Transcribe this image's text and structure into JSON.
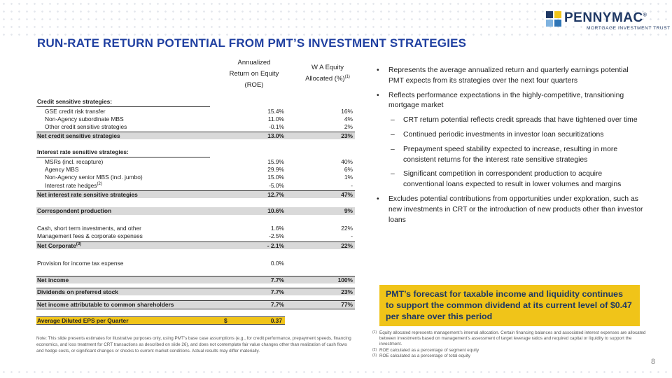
{
  "logo": {
    "name": "PENNYMAC",
    "trademark": "®",
    "tagline": "MORTGAGE INVESTMENT TRUST",
    "colors": [
      "#1f3864",
      "#2e75b6",
      "#f0c419",
      "#7fb3e0"
    ]
  },
  "title": "RUN-RATE RETURN POTENTIAL FROM PMT’S INVESTMENT STRATEGIES",
  "table": {
    "col_roe": [
      "Annualized",
      "Return on Equity",
      "(ROE)"
    ],
    "col_alloc_line1": "W A Equity",
    "col_alloc_line2": "Allocated (%)",
    "col_alloc_sup": "(1)",
    "rows": [
      {
        "label": "Credit sensitive strategies:",
        "roe": "",
        "alloc": ""
      },
      {
        "label": "GSE credit risk transfer",
        "roe": "15.4%",
        "alloc": "16%"
      },
      {
        "label": "Non-Agency subordinate MBS",
        "roe": "11.0%",
        "alloc": "4%"
      },
      {
        "label": "Other credit sensitive strategies",
        "roe": "-0.1%",
        "alloc": "2%"
      },
      {
        "label": "Net credit sensitive strategies",
        "roe": "13.0%",
        "alloc": "23%"
      },
      {
        "label": "Interest rate sensitive strategies:",
        "roe": "",
        "alloc": ""
      },
      {
        "label": "MSRs (incl. recapture)",
        "roe": "15.9%",
        "alloc": "40%"
      },
      {
        "label": "Agency MBS",
        "roe": "29.9%",
        "alloc": "6%"
      },
      {
        "label": "Non-Agency senior MBS (incl. jumbo)",
        "roe": "15.0%",
        "alloc": "1%"
      },
      {
        "label": "Interest rate hedges",
        "sup": "(2)",
        "roe": "-5.0%",
        "alloc": "-"
      },
      {
        "label": "Net interest rate sensitive strategies",
        "roe": "12.7%",
        "alloc": "47%"
      },
      {
        "label": "Correspondent production",
        "roe": "10.6%",
        "alloc": "9%"
      },
      {
        "label": "Cash, short term investments, and other",
        "roe": "1.6%",
        "alloc": "22%"
      },
      {
        "label": "Management fees & corporate expenses",
        "roe": "-2.5%",
        "alloc": "-"
      },
      {
        "label": "Net Corporate",
        "sup": "(3)",
        "roe": "- 2.1%",
        "alloc": "22%"
      },
      {
        "label": "Provision for income tax expense",
        "roe": "0.0%",
        "alloc": ""
      },
      {
        "label": "Net income",
        "roe": "7.7%",
        "alloc": "100%"
      },
      {
        "label": "Dividends on preferred stock",
        "roe": "7.7%",
        "alloc": "23%"
      },
      {
        "label": "Net income attributable to common shareholders",
        "roe": "7.7%",
        "alloc": "77%"
      }
    ],
    "eps": {
      "label": "Average Diluted EPS per Quarter",
      "currency": "$",
      "value": "0.37"
    }
  },
  "note": "Note: This slide presents estimates for illustrative purposes only, using PMT’s base case assumptions (e.g., for credit performance, prepayment speeds, financing economics, and loss treatment for CRT transactions as described on slide 26), and does not contemplate fair value changes other than realization of cash flows and hedge costs, or significant changes or shocks to current market conditions.  Actual results may differ materially.",
  "bullets": [
    {
      "level": 1,
      "text": "Represents the average annualized return and quarterly earnings potential PMT expects from its strategies over the next four quarters"
    },
    {
      "level": 1,
      "text": "Reflects performance expectations in the highly-competitive, transitioning mortgage market"
    },
    {
      "level": 2,
      "text": "CRT return potential reflects credit spreads that have tightened over time"
    },
    {
      "level": 2,
      "text": "Continued periodic investments in investor loan securitizations"
    },
    {
      "level": 2,
      "text": "Prepayment speed stability expected to increase, resulting in more consistent returns for the interest rate sensitive strategies"
    },
    {
      "level": 2,
      "text": "Significant competition in correspondent production to acquire conventional loans expected to result in lower volumes and margins"
    },
    {
      "level": 1,
      "text": "Excludes potential contributions from opportunities under exploration, such as new investments in CRT or the introduction of new products other than investor loans"
    }
  ],
  "callout": "PMT’s forecast for taxable income and liquidity continues to support the common dividend at its current level of $0.47 per share over this period",
  "footnotes": [
    {
      "num": "(1)",
      "text": "Equity allocated represents management’s internal allocation. Certain financing balances and associated interest expenses are allocated between investments based on management’s assessment of target leverage ratios and required capital or liquidity to support the investment."
    },
    {
      "num": "(2)",
      "text": "ROE calculated as a percentage of segment equity"
    },
    {
      "num": "(3)",
      "text": "ROE calculated as a percentage of total equity"
    }
  ],
  "page_number": "8"
}
